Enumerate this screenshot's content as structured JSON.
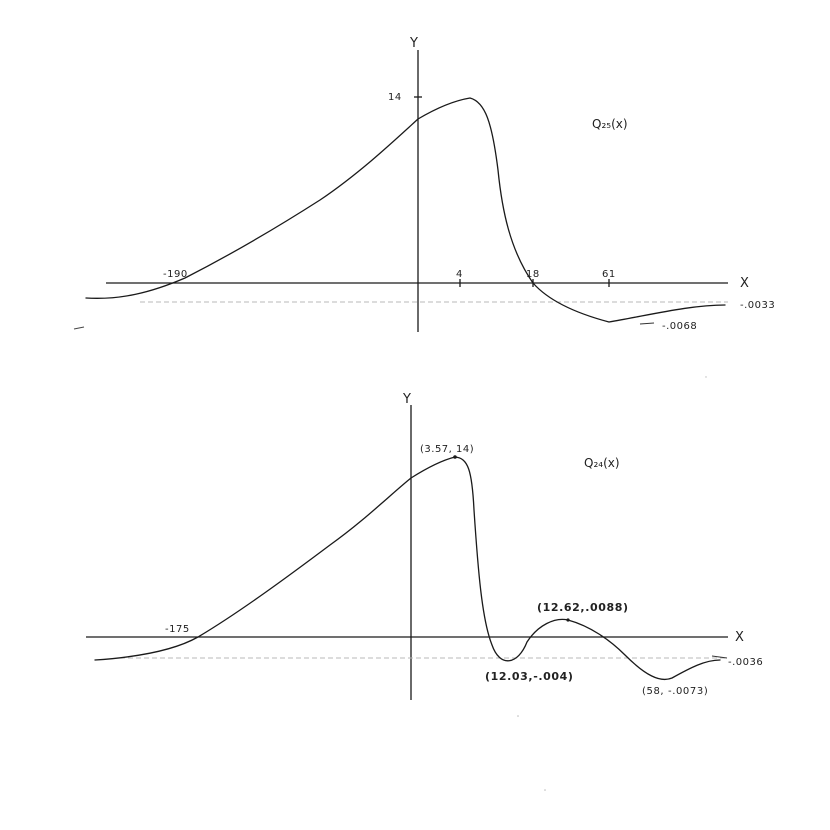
{
  "chart_data": [
    {
      "type": "line",
      "function_label": "Q₂₅(x)",
      "xlabel": "X",
      "ylabel": "Y",
      "x_ticks": [
        "-190",
        "4",
        "18",
        "61"
      ],
      "y_ticks": [
        "14"
      ],
      "asymptote_label": "-.0033",
      "annotations": [
        {
          "text": "-.0068",
          "x": 61,
          "y": -0.0068
        }
      ],
      "series": [
        {
          "values": [
            {
              "x": -400,
              "y": -0.0033
            },
            {
              "x": -250,
              "y": -0.0025
            },
            {
              "x": -190,
              "y": 0
            },
            {
              "x": -120,
              "y": 4.5
            },
            {
              "x": -50,
              "y": 9
            },
            {
              "x": 0,
              "y": 12.2
            },
            {
              "x": 2,
              "y": 13.1
            },
            {
              "x": 4,
              "y": 14
            },
            {
              "x": 7,
              "y": 12
            },
            {
              "x": 12,
              "y": 4
            },
            {
              "x": 18,
              "y": 0
            },
            {
              "x": 30,
              "y": -0.004
            },
            {
              "x": 61,
              "y": -0.0068
            },
            {
              "x": 90,
              "y": -0.005
            },
            {
              "x": 140,
              "y": -0.0035
            }
          ]
        }
      ]
    },
    {
      "type": "line",
      "function_label": "Q₂₄(x)",
      "xlabel": "X",
      "ylabel": "Y",
      "x_ticks": [
        "-175"
      ],
      "asymptote_label": "-.0036",
      "annotations": [
        {
          "text": "(3.57, 14)",
          "x": 3.57,
          "y": 14
        },
        {
          "text": "(12.62,.0088)",
          "x": 12.62,
          "y": 0.0088
        },
        {
          "text": "(12.03,-.004)",
          "x": 12.03,
          "y": -0.004
        },
        {
          "text": "(58, -.0073)",
          "x": 58,
          "y": -0.0073
        }
      ],
      "series": [
        {
          "values": [
            {
              "x": -400,
              "y": -0.0036
            },
            {
              "x": -250,
              "y": -0.0025
            },
            {
              "x": -175,
              "y": 0
            },
            {
              "x": -100,
              "y": 5.5
            },
            {
              "x": -30,
              "y": 10
            },
            {
              "x": 0,
              "y": 12
            },
            {
              "x": 3.57,
              "y": 14
            },
            {
              "x": 6,
              "y": 12
            },
            {
              "x": 9,
              "y": 3
            },
            {
              "x": 11,
              "y": 0
            },
            {
              "x": 12.03,
              "y": -0.004
            },
            {
              "x": 12.3,
              "y": 0
            },
            {
              "x": 12.62,
              "y": 0.0088
            },
            {
              "x": 25,
              "y": 0
            },
            {
              "x": 58,
              "y": -0.0073
            },
            {
              "x": 90,
              "y": -0.0045
            },
            {
              "x": 140,
              "y": -0.0036
            }
          ]
        }
      ]
    }
  ]
}
